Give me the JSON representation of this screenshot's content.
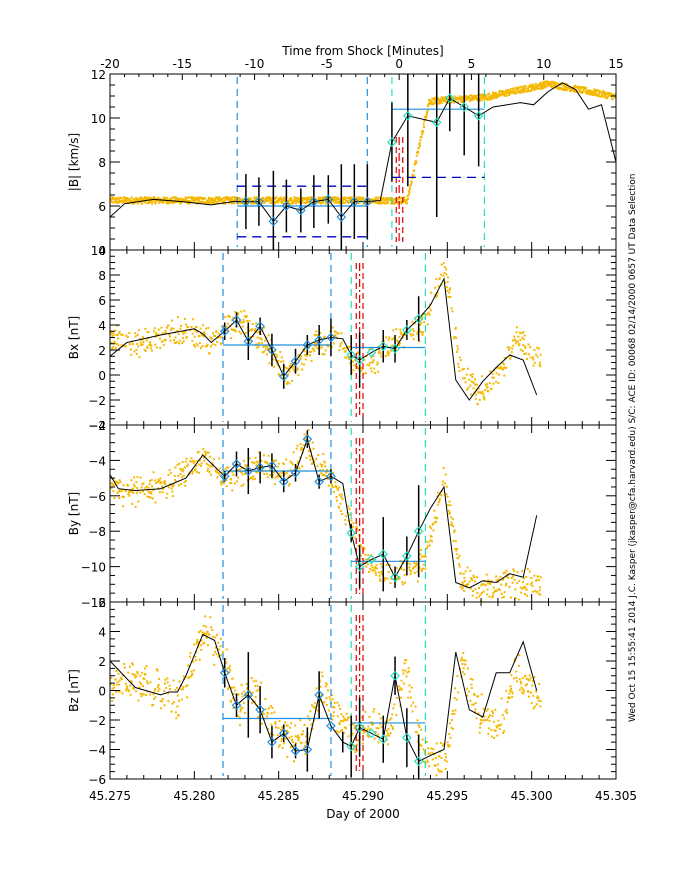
{
  "chart_data": {
    "type": "scatter",
    "top_axis": {
      "label": "Time from Shock [Minutes]",
      "range": [
        -20,
        15
      ],
      "ticks": [
        "-20",
        "-15",
        "-10",
        "-5",
        "0",
        "5",
        "10",
        "15"
      ]
    },
    "bottom_axis": {
      "label": "Day of 2000",
      "range": [
        45.275,
        45.305
      ],
      "ticks": [
        "45.275",
        "45.280",
        "45.285",
        "45.290",
        "45.295",
        "45.300",
        "45.305"
      ]
    },
    "side_text": "Wed Oct 15 15:55:41 2014   J.C. Kasper (jkasper@cfa.harvard.edu)   S/C: ACE ID: 00068 02/14/2000   0657 UT Data Selection",
    "colors": {
      "raw_points": "#f5b800",
      "averaged_line": "#000000",
      "upstream_window": "#1e90e0",
      "downstream_window": "#20e0c0",
      "shock_markers": "#e00000",
      "bounds": "#0000c0",
      "mean_line": "#1e90e0"
    },
    "panels": [
      {
        "id": "absB",
        "ylabel": "|B| [km/s]",
        "ylim": [
          4,
          12
        ],
        "yticks": [
          "4",
          "6",
          "8",
          "10",
          "12"
        ],
        "windows": {
          "upstream": [
            -11.2,
            -2.2
          ],
          "downstream": [
            -0.5,
            5.9
          ],
          "shock": [
            -0.2,
            0.0,
            0.25
          ]
        },
        "upstream_mean": 6.0,
        "upstream_bounds": [
          4.6,
          6.9
        ],
        "downstream_mean": 10.4,
        "downstream_bounds": [
          7.3,
          null
        ],
        "avg_min": [
          -20,
          -19,
          -17,
          -15,
          -13,
          -11.5,
          -10.6,
          -9.7,
          -8.7,
          -7.8,
          -6.8,
          -5.9,
          -4.9,
          -4.0,
          -3.1,
          -2.2,
          -1.3,
          -0.5,
          0.6,
          2.6,
          3.5,
          4.5,
          5.5,
          6.5,
          8.4,
          9.3,
          10.3,
          11.3,
          12.2,
          13.1,
          14.0,
          15
        ],
        "avg_val": [
          5.5,
          6.1,
          6.3,
          6.2,
          6.05,
          6.2,
          6.2,
          6.2,
          5.3,
          6.0,
          5.8,
          6.2,
          6.3,
          5.5,
          6.2,
          6.2,
          6.25,
          8.9,
          10.1,
          9.8,
          10.9,
          10.5,
          10.1,
          10.5,
          10.7,
          10.6,
          11.2,
          11.6,
          11.3,
          10.4,
          10.6,
          8.0
        ],
        "err": [
          0,
          0,
          0,
          0,
          0,
          0,
          1.25,
          1.1,
          2.3,
          1.2,
          1.0,
          1.2,
          1.1,
          2.4,
          1.7,
          1.7,
          0,
          1.8,
          3.2,
          4.3,
          1.5,
          2.2,
          2.3,
          0,
          0,
          0,
          0,
          0,
          0,
          0,
          0,
          0
        ],
        "raw_base": [
          6.3,
          6.3,
          6.3,
          6.3,
          6.3,
          6.3,
          10.8,
          11.0,
          11.6,
          11.0
        ],
        "raw_min": [
          -20,
          -10,
          -5,
          -1.2,
          -0.2,
          0.5,
          2,
          6,
          10.3,
          15
        ],
        "raw_noise": 0.15
      },
      {
        "id": "Bx",
        "ylabel": "Bx [nT]",
        "ylim": [
          -4,
          10
        ],
        "yticks": [
          "-4",
          "-2",
          "0",
          "2",
          "4",
          "6",
          "8",
          "10"
        ],
        "windows": {
          "upstream": [
            45.2817,
            45.2881
          ],
          "downstream": [
            45.2893,
            45.2937
          ],
          "shock": [
            45.2896,
            45.2898,
            45.29
          ]
        },
        "upstream_mean": 2.4,
        "downstream_mean": 2.2,
        "avg_day": [
          45.275,
          45.276,
          45.278,
          45.28,
          45.2805,
          45.281,
          45.2818,
          45.2825,
          45.2832,
          45.2839,
          45.2846,
          45.2853,
          45.286,
          45.2867,
          45.2874,
          45.2881,
          45.2888,
          45.2893,
          45.2898,
          45.2905,
          45.2912,
          45.2919,
          45.2926,
          45.2933,
          45.294,
          45.2948,
          45.2955,
          45.2963,
          45.2971,
          45.2979,
          45.2987,
          45.2995,
          45.3003
        ],
        "avg_val": [
          1.5,
          2.6,
          3.2,
          3.7,
          3.3,
          2.6,
          3.5,
          4.4,
          2.7,
          3.9,
          2.0,
          -0.1,
          1.1,
          2.4,
          2.8,
          3.0,
          2.9,
          1.6,
          1.2,
          1.8,
          2.3,
          2.1,
          3.6,
          4.5,
          5.6,
          7.7,
          -0.4,
          -2.0,
          -0.5,
          0.6,
          1.6,
          1.2,
          -1.6
        ],
        "err": [
          0,
          0,
          0,
          0,
          0,
          0,
          0.7,
          0.6,
          1.5,
          0.7,
          1.3,
          1.0,
          1.0,
          0.8,
          1.2,
          1.5,
          0,
          1.6,
          2.2,
          0,
          1.3,
          1.1,
          0.8,
          1.8,
          0,
          0,
          0,
          0,
          0,
          0,
          0,
          0,
          0
        ],
        "raw_day": [
          45.275,
          45.2765,
          45.278,
          45.2795,
          45.281,
          45.2825,
          45.284,
          45.2855,
          45.287,
          45.2885,
          45.2895,
          45.2905,
          45.2915,
          45.2935,
          45.2948,
          45.2958,
          45.2968,
          45.298,
          45.299,
          45.3003
        ],
        "raw_val": [
          3.0,
          2.6,
          3.2,
          3.7,
          2.6,
          4.5,
          3.0,
          0.0,
          2.5,
          3.0,
          0.8,
          1.0,
          2.4,
          4.2,
          8.5,
          0.0,
          -1.3,
          0.3,
          3.0,
          1.3
        ],
        "raw_noise": 0.8
      },
      {
        "id": "By",
        "ylabel": "By [nT]",
        "ylim": [
          -12,
          -2
        ],
        "yticks": [
          "-12",
          "-10",
          "-8",
          "-6",
          "-4",
          "-2"
        ],
        "windows": {
          "upstream": [
            45.2817,
            45.2881
          ],
          "downstream": [
            45.2893,
            45.2937
          ],
          "shock": [
            45.2896,
            45.2898,
            45.29
          ]
        },
        "upstream_mean": -4.6,
        "downstream_mean": -9.7,
        "avg_day": [
          45.275,
          45.2755,
          45.2765,
          45.278,
          45.2795,
          45.2805,
          45.2818,
          45.2825,
          45.2832,
          45.2839,
          45.2846,
          45.2853,
          45.286,
          45.2867,
          45.2874,
          45.2881,
          45.2888,
          45.2893,
          45.2898,
          45.2905,
          45.2912,
          45.2919,
          45.2926,
          45.2933,
          45.294,
          45.2948,
          45.2955,
          45.2963,
          45.2971,
          45.2979,
          45.2987,
          45.2995,
          45.3003
        ],
        "avg_val": [
          -4.8,
          -5.6,
          -5.7,
          -5.6,
          -5.0,
          -3.7,
          -4.9,
          -4.2,
          -4.6,
          -4.4,
          -4.3,
          -5.2,
          -4.7,
          -2.8,
          -5.2,
          -4.9,
          -5.3,
          -8.1,
          -10.0,
          -9.6,
          -9.3,
          -10.6,
          -9.4,
          -8.0,
          -6.7,
          -5.5,
          -10.9,
          -11.2,
          -10.8,
          -10.9,
          -10.4,
          -10.6,
          -7.1
        ],
        "err": [
          0,
          0,
          0,
          0,
          0,
          0,
          0.3,
          0.7,
          1.3,
          0.9,
          0.7,
          0.6,
          0.5,
          0.5,
          0.4,
          0.4,
          0,
          0.5,
          1.2,
          0,
          2.1,
          0.6,
          1.1,
          2.6,
          0,
          0,
          0,
          0,
          0,
          0,
          0,
          0,
          0
        ],
        "raw_day": [
          45.275,
          45.2765,
          45.278,
          45.2795,
          45.2805,
          45.282,
          45.284,
          45.2855,
          45.2867,
          45.2881,
          45.2893,
          45.2905,
          45.292,
          45.2935,
          45.2948,
          45.2958,
          45.297,
          45.2985,
          45.3003
        ],
        "raw_val": [
          -5.5,
          -5.7,
          -5.4,
          -4.6,
          -3.7,
          -5.0,
          -4.3,
          -4.6,
          -3.0,
          -5.2,
          -7.5,
          -10.3,
          -10.3,
          -9.8,
          -5.0,
          -10.8,
          -11.3,
          -10.8,
          -11.0
        ],
        "raw_noise": 0.6
      },
      {
        "id": "Bz",
        "ylabel": "Bz [nT]",
        "ylim": [
          -6,
          6
        ],
        "yticks": [
          "-6",
          "-4",
          "-2",
          "0",
          "2",
          "4",
          "6"
        ],
        "windows": {
          "upstream": [
            45.2817,
            45.2881
          ],
          "downstream": [
            45.2893,
            45.2937
          ],
          "shock": [
            45.2896,
            45.2898,
            45.29
          ]
        },
        "upstream_mean": -1.9,
        "downstream_mean": -2.2,
        "avg_day": [
          45.275,
          45.2765,
          45.278,
          45.2785,
          45.279,
          45.2795,
          45.2805,
          45.2812,
          45.2818,
          45.2825,
          45.2832,
          45.2839,
          45.2846,
          45.2853,
          45.286,
          45.2867,
          45.2874,
          45.2881,
          45.2888,
          45.2893,
          45.2898,
          45.2905,
          45.2912,
          45.2919,
          45.2926,
          45.2933,
          45.294,
          45.2948,
          45.2955,
          45.2963,
          45.2971,
          45.2979,
          45.2987,
          45.2995,
          45.3003
        ],
        "avg_val": [
          2.0,
          0.2,
          -0.3,
          -0.1,
          -0.1,
          1.0,
          3.8,
          3.4,
          1.2,
          -1.0,
          -0.3,
          -1.3,
          -3.5,
          -2.9,
          -4.1,
          -4.0,
          -0.3,
          -2.4,
          -3.5,
          -3.8,
          -2.5,
          -2.9,
          -3.3,
          1.0,
          -3.2,
          -4.8,
          -4.4,
          -4.0,
          2.6,
          -1.3,
          -1.8,
          1.2,
          1.2,
          3.3,
          0
        ],
        "err": [
          0,
          0,
          0,
          0,
          0,
          0,
          0,
          0,
          1.0,
          0.8,
          2.9,
          1.6,
          1.1,
          0.6,
          0.5,
          1.5,
          1.6,
          0,
          0.7,
          2.1,
          2.0,
          0,
          1.6,
          1.3,
          2.0,
          1.8,
          0,
          0,
          0,
          0,
          0,
          0,
          0,
          0,
          0
        ],
        "raw_day": [
          45.275,
          45.2762,
          45.277,
          45.278,
          45.279,
          45.2805,
          45.2815,
          45.2825,
          45.2835,
          45.285,
          45.2865,
          45.2875,
          45.2885,
          45.2895,
          45.2905,
          45.2915,
          45.2925,
          45.2935,
          45.2948,
          45.2958,
          45.2968,
          45.298,
          45.299,
          45.3003
        ],
        "raw_val": [
          0.5,
          0.8,
          0.5,
          0.0,
          -0.5,
          4.0,
          3.0,
          -1.0,
          0.0,
          -3.0,
          -3.5,
          0.5,
          -2.0,
          -3.0,
          -2.0,
          -3.0,
          1.5,
          -4.5,
          -4.8,
          2.0,
          -1.5,
          -2.5,
          1.5,
          0.0
        ],
        "raw_noise": 1.0
      }
    ]
  }
}
